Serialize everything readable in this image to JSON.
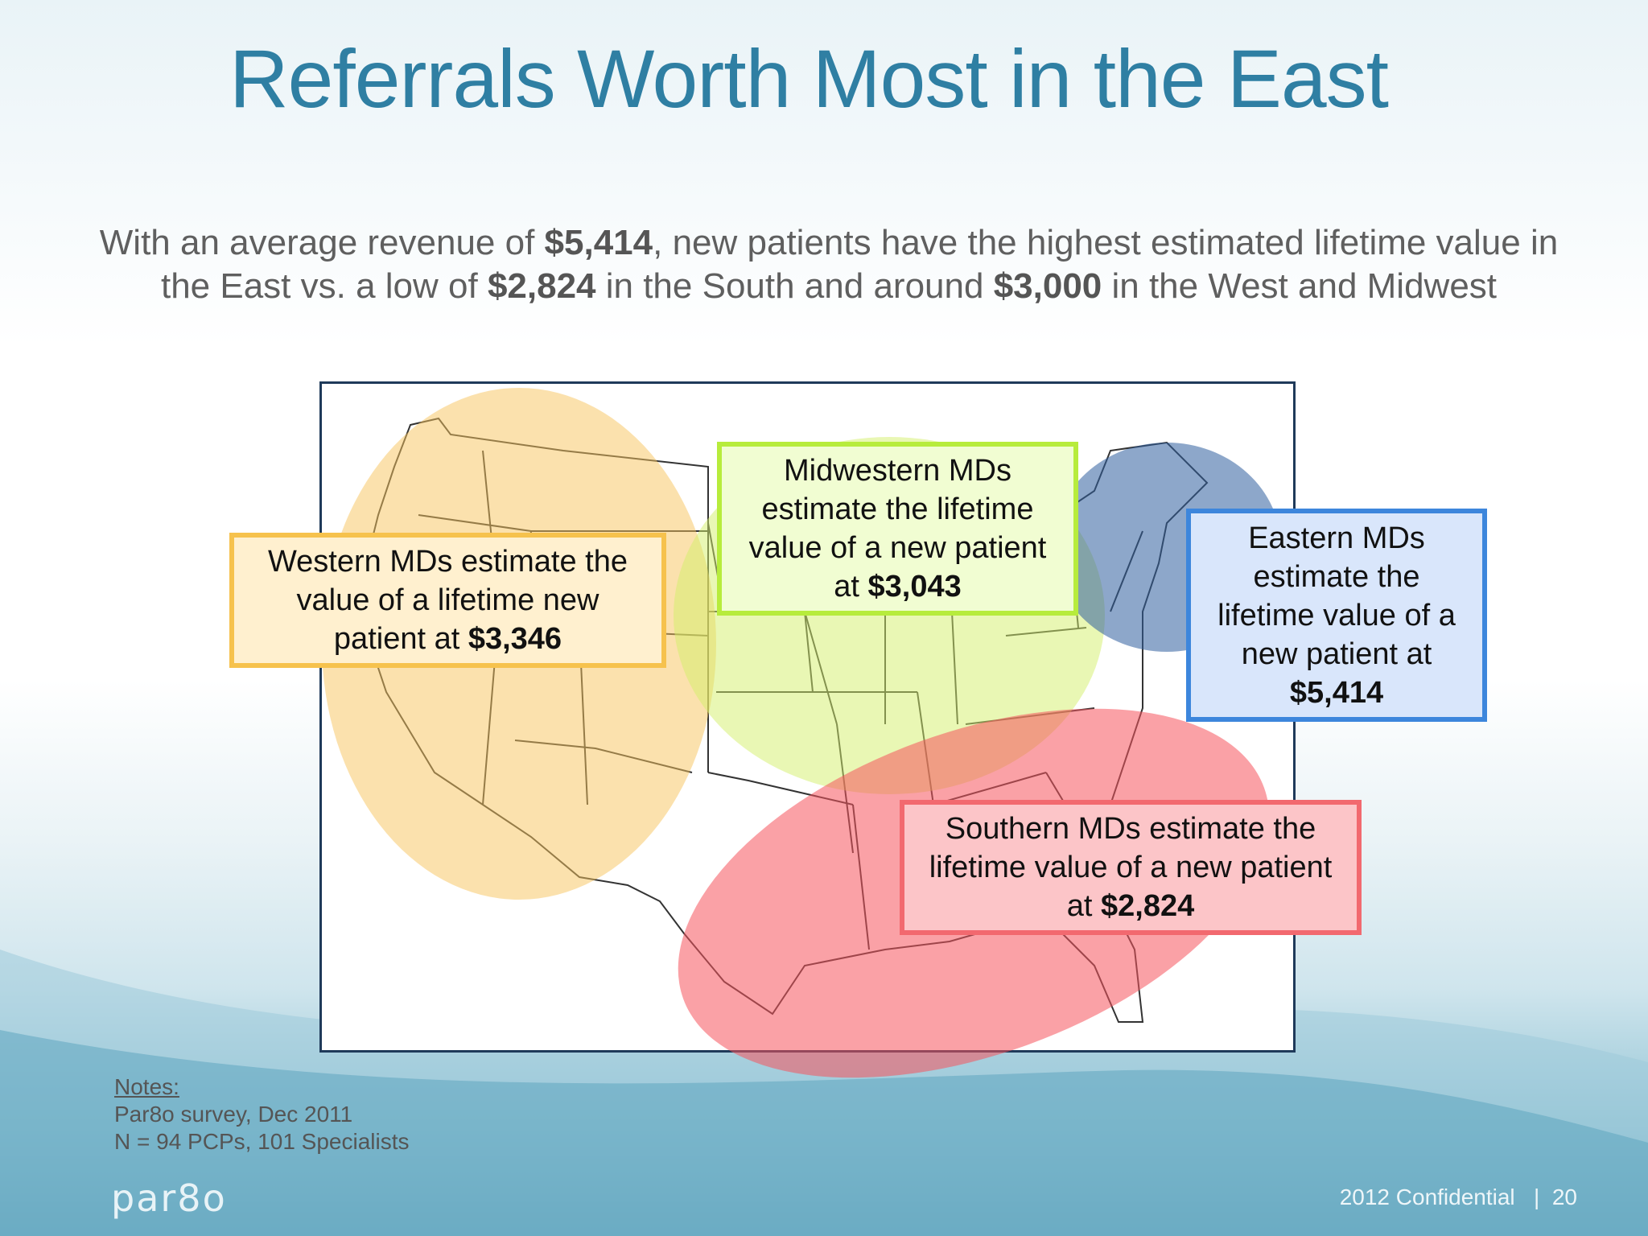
{
  "slide": {
    "title": "Referrals Worth Most in the East",
    "subtitle_line1_a": "With an average revenue of ",
    "subtitle_line1_b": "$5,414",
    "subtitle_line1_c": ", new patients have the highest estimated lifetime value in",
    "subtitle_line2_a": "the East vs. a low of ",
    "subtitle_line2_b": "$2,824",
    "subtitle_line2_c": " in the South and around ",
    "subtitle_line2_d": "$3,000",
    "subtitle_line2_e": " in the West and Midwest"
  },
  "callouts": {
    "west": {
      "line1": "Western MDs estimate the",
      "line2": "value of a lifetime new",
      "line3": "patient at ",
      "value": "$3,346"
    },
    "midwest": {
      "line1": "Midwestern MDs",
      "line2": "estimate the lifetime",
      "line3": "value of a new patient",
      "line4": "at ",
      "value": "$3,043"
    },
    "east": {
      "line1": "Eastern MDs",
      "line2": "estimate the",
      "line3": "lifetime value of a",
      "line4": "new patient at",
      "value": "$5,414"
    },
    "south": {
      "line1": "Southern MDs estimate the",
      "line2": "lifetime value of a new patient",
      "line3": "at ",
      "value": "$2,824"
    }
  },
  "regions": {
    "west_color": "#f7c45c",
    "midwest_color": "#d4f06a",
    "east_color": "#2f5f9e",
    "south_color": "#f5545c"
  },
  "notes": {
    "heading": "Notes:",
    "line1": "Par8o survey, Dec 2011",
    "line2": "N = 94 PCPs, 101 Specialists"
  },
  "footer": {
    "logo": "par8o",
    "confidential": "2012 Confidential",
    "separator": "|",
    "page": "20"
  }
}
